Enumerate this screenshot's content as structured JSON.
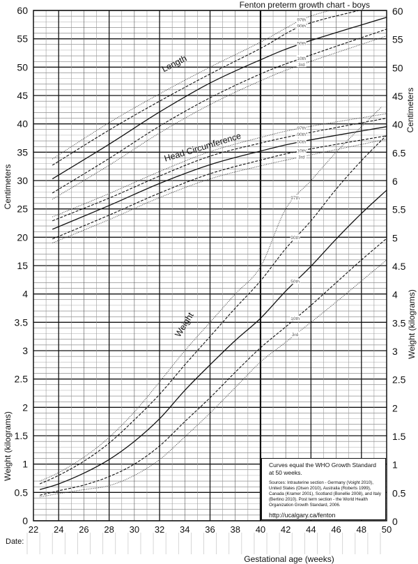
{
  "chart_data": {
    "type": "line",
    "title": "Fenton preterm growth chart - boys",
    "xlabel": "Gestational age (weeks)",
    "xlim": [
      22,
      50
    ],
    "x_ticks": [
      "22",
      "24",
      "26",
      "28",
      "30",
      "32",
      "34",
      "36",
      "38",
      "40",
      "42",
      "44",
      "46",
      "48",
      "50"
    ],
    "left_axis": {
      "labels": [
        "60",
        "55",
        "50",
        "45",
        "40",
        "35",
        "30",
        "25",
        "20",
        "15",
        "4",
        "3.5",
        "3",
        "2.5",
        "2",
        "1.5",
        "1",
        "0.5",
        "0"
      ],
      "cm_label": "Centimeters",
      "kg_label": "Weight (kilograms)"
    },
    "right_axis": {
      "labels": [
        "60",
        "55",
        "50",
        "45",
        "40",
        "6.5",
        "6",
        "5.5",
        "5",
        "4.5",
        "4",
        "3.5",
        "3",
        "2.5",
        "2",
        "1.5",
        "1",
        "0.5",
        "0"
      ],
      "cm_label": "Centimeters",
      "kg_label": "Weight (kilograms)"
    },
    "grid": true,
    "date_label": "Date:",
    "note": {
      "headline": "Curves equal the WHO Growth Standard at 50 weeks.",
      "sources": "Sources: Intrauterine section - Germany (Voight 2010), United States (Olsen 2010), Australia (Roberts 1999), Canada (Kramer 2001), Scotland (Bonellie 2008), and Italy (Bertino 2010). Post term section - the World Health Organization Growth Standard, 2006.",
      "url": "http://ucalgary.ca/fenton"
    },
    "groups": [
      {
        "name": "Length",
        "unit": "cm",
        "series": [
          {
            "name": "97th",
            "style": "dotted",
            "x": [
              23.5,
              28,
              32,
              36,
              40,
              43.3,
              45.5
            ],
            "y": [
              33.8,
              40.2,
              45.3,
              50.0,
              54.4,
              58.4,
              60
            ]
          },
          {
            "name": "90th",
            "style": "dashed",
            "x": [
              23.5,
              28,
              32,
              36,
              40,
              43.3,
              47.8
            ],
            "y": [
              32.7,
              38.9,
              44.0,
              48.8,
              53.3,
              57.3,
              60
            ]
          },
          {
            "name": "50th",
            "style": "solid",
            "x": [
              23.5,
              28,
              32,
              36,
              40,
              43.3,
              50
            ],
            "y": [
              30.3,
              36.4,
              42.1,
              47.2,
              51.3,
              54.2,
              58.8
            ]
          },
          {
            "name": "10th",
            "style": "dashed",
            "x": [
              23.5,
              28,
              32,
              36,
              40,
              43.3,
              50
            ],
            "y": [
              27.8,
              33.9,
              39.6,
              44.6,
              48.8,
              51.6,
              56.7
            ]
          },
          {
            "name": "3rd",
            "style": "dotted",
            "x": [
              23.5,
              28,
              32,
              36,
              40,
              43.3,
              50
            ],
            "y": [
              26.7,
              32.7,
              38.4,
              43.4,
              47.6,
              50.5,
              55.5
            ]
          }
        ]
      },
      {
        "name": "Head Circumference",
        "unit": "cm",
        "series": [
          {
            "name": "97th",
            "style": "dotted",
            "x": [
              23.5,
              28,
              32,
              36,
              40,
              43.3,
              50
            ],
            "y": [
              23.6,
              27.7,
              31.6,
              35.1,
              37.6,
              39.3,
              41.8
            ]
          },
          {
            "name": "90th",
            "style": "dashed",
            "x": [
              23.5,
              28,
              32,
              36,
              40,
              43.3,
              50
            ],
            "y": [
              22.9,
              26.9,
              30.8,
              34.3,
              36.6,
              38.2,
              41.0
            ]
          },
          {
            "name": "50th",
            "style": "solid",
            "x": [
              23.5,
              28,
              32,
              36,
              40,
              43.3,
              50
            ],
            "y": [
              21.4,
              25.6,
              29.5,
              32.8,
              35.2,
              36.9,
              39.5
            ]
          },
          {
            "name": "10th",
            "style": "dashed",
            "x": [
              23.5,
              28,
              32,
              36,
              40,
              43.3,
              50
            ],
            "y": [
              19.7,
              23.9,
              27.8,
              31.2,
              33.6,
              35.3,
              37.9
            ]
          },
          {
            "name": "3rd",
            "style": "dotted",
            "x": [
              23.5,
              28,
              32,
              36,
              40,
              43.3,
              50
            ],
            "y": [
              19.0,
              23.1,
              27.0,
              30.3,
              32.6,
              34.2,
              37.3
            ]
          }
        ]
      },
      {
        "name": "Weight",
        "unit": "kg",
        "series": [
          {
            "name": "97th",
            "style": "dotted",
            "x": [
              22.5,
              24,
              26,
              28,
              30,
              32,
              34,
              36,
              38,
              40,
              42,
              44,
              46,
              48,
              49.6
            ],
            "y": [
              0.7,
              0.85,
              1.12,
              1.47,
              1.92,
              2.45,
              3.0,
              3.5,
              4.0,
              4.48,
              5.5,
              6.0,
              6.5,
              6.95,
              7.3
            ]
          },
          {
            "name": "90th",
            "style": "dashed",
            "x": [
              22.5,
              24,
              26,
              28,
              30,
              32,
              34,
              36,
              38,
              40,
              42,
              44,
              46,
              48,
              50
            ],
            "y": [
              0.65,
              0.8,
              1.05,
              1.37,
              1.78,
              2.23,
              2.75,
              3.25,
              3.75,
              4.23,
              4.8,
              5.29,
              5.85,
              6.35,
              6.8
            ]
          },
          {
            "name": "50th",
            "style": "solid",
            "x": [
              22.5,
              24,
              26,
              28,
              30,
              32,
              34,
              36,
              38,
              40,
              42,
              44,
              46,
              48,
              50
            ],
            "y": [
              0.55,
              0.65,
              0.84,
              1.08,
              1.4,
              1.8,
              2.3,
              2.75,
              3.18,
              3.57,
              4.05,
              4.49,
              4.97,
              5.42,
              5.83
            ]
          },
          {
            "name": "10th",
            "style": "dashed",
            "x": [
              22.5,
              24,
              26,
              28,
              30,
              32,
              34,
              36,
              38,
              40,
              42,
              44,
              46,
              48,
              50
            ],
            "y": [
              0.45,
              0.53,
              0.63,
              0.78,
              1.0,
              1.32,
              1.75,
              2.17,
              2.62,
              3.05,
              3.42,
              3.8,
              4.2,
              4.6,
              4.98
            ]
          },
          {
            "name": "3rd",
            "style": "dotted",
            "x": [
              22.5,
              24,
              26,
              28,
              30,
              32,
              34,
              36,
              38,
              40,
              42,
              44,
              46,
              48,
              50
            ],
            "y": [
              0.42,
              0.48,
              0.55,
              0.62,
              0.8,
              1.08,
              1.48,
              1.9,
              2.35,
              2.8,
              3.15,
              3.5,
              3.86,
              4.23,
              4.6
            ]
          }
        ]
      }
    ]
  }
}
